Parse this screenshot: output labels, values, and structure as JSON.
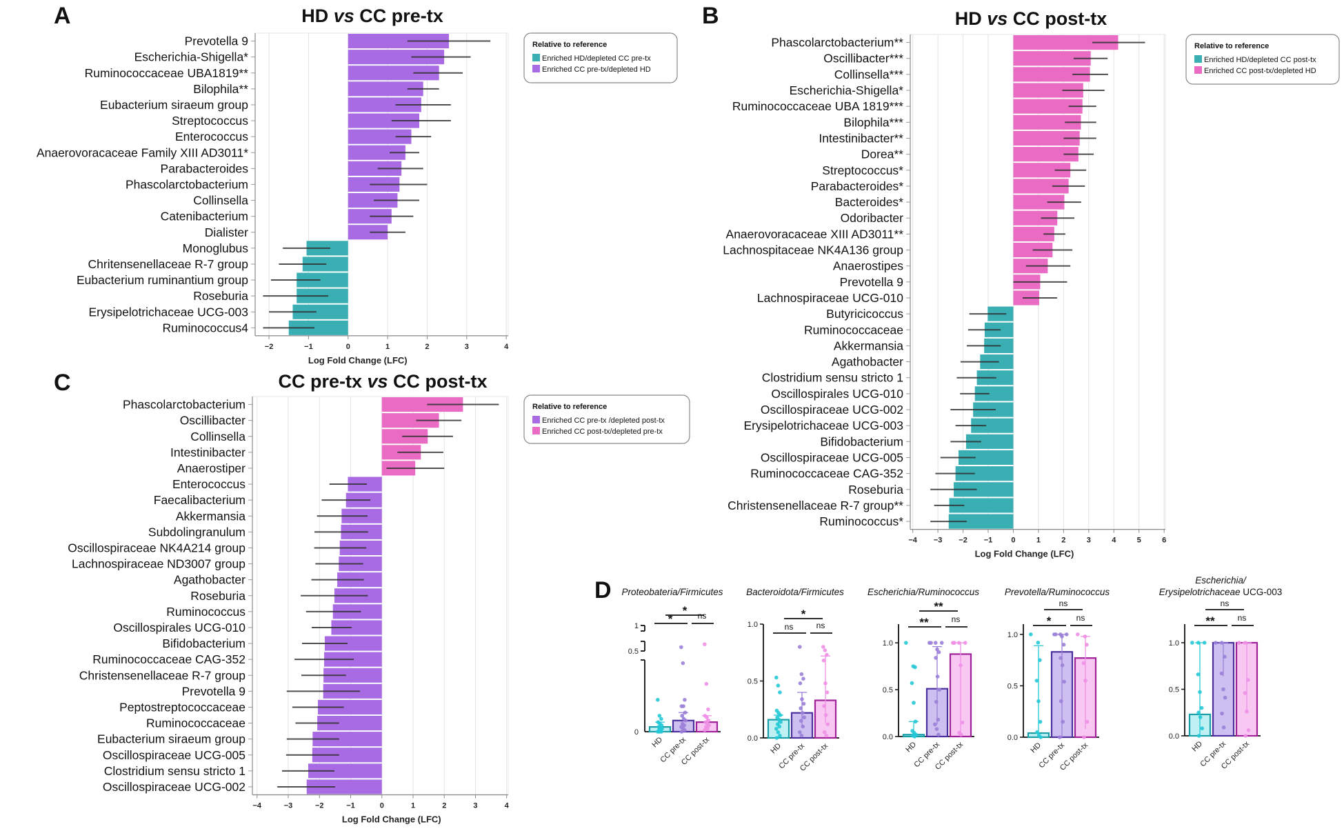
{
  "colors": {
    "teal": "#3AAFB3",
    "purple": "#A86BE3",
    "pink": "#EA6BC4",
    "errorbar": "#333333",
    "hd_dot": "#25C8D6",
    "pre_dot": "#9B80D8",
    "post_dot": "#EE8FE6"
  },
  "chart_data": [
    {
      "panel": "A",
      "type": "bar",
      "orientation": "horizontal",
      "title": "HD vs CC pre-tx",
      "title_parts": [
        "HD ",
        "vs",
        " CC pre-tx"
      ],
      "xlabel": "Log Fold Change (LFC)",
      "xlim": [
        -2.35,
        4.05
      ],
      "xticks": [
        -2,
        -1,
        0,
        1,
        2,
        3,
        4
      ],
      "grid": true,
      "legend": {
        "title": "Relative to reference",
        "placement": "right",
        "items": [
          {
            "label": "Enriched HD/depleted CC pre-tx",
            "color": "teal"
          },
          {
            "label": "Enriched CC pre-tx/depleted HD",
            "color": "purple"
          }
        ]
      },
      "categories": [
        "Prevotella 9",
        "Escherichia-Shigella*",
        "Ruminococcaceae UBA1819**",
        "Bilophila**",
        "Eubacterium siraeum group",
        "Streptococcus",
        "Enterococcus",
        "Anaerovoracaceae Family XIII AD3011*",
        "Parabacteroides",
        "Phascolarctobacterium",
        "Collinsella",
        "Catenibacterium",
        "Dialister",
        "Monoglubus",
        "Chritensenellaceae R-7 group",
        "Eubacterium ruminantium group",
        "Roseburia",
        "Erysipelotrichaceae UCG-003",
        "Ruminococcus4"
      ],
      "values": [
        2.55,
        2.43,
        2.3,
        1.9,
        1.85,
        1.8,
        1.6,
        1.45,
        1.35,
        1.3,
        1.25,
        1.1,
        1.0,
        -1.05,
        -1.15,
        -1.3,
        -1.3,
        -1.4,
        -1.5
      ],
      "ci_low": [
        1.5,
        1.6,
        1.65,
        1.5,
        1.2,
        1.1,
        1.2,
        1.05,
        0.75,
        0.55,
        0.65,
        0.55,
        0.55,
        -1.65,
        -1.75,
        -1.95,
        -2.15,
        -2.0,
        -2.15
      ],
      "ci_high": [
        3.6,
        3.1,
        2.9,
        2.3,
        2.6,
        2.6,
        2.1,
        1.8,
        1.9,
        2.0,
        1.8,
        1.65,
        1.45,
        -0.45,
        -0.55,
        -0.7,
        -0.5,
        -0.8,
        -0.85
      ],
      "colors": [
        "purple",
        "purple",
        "purple",
        "purple",
        "purple",
        "purple",
        "purple",
        "purple",
        "purple",
        "purple",
        "purple",
        "purple",
        "purple",
        "teal",
        "teal",
        "teal",
        "teal",
        "teal",
        "teal"
      ]
    },
    {
      "panel": "B",
      "type": "bar",
      "orientation": "horizontal",
      "title": "HD vs CC post-tx",
      "title_parts": [
        "HD ",
        "vs",
        " CC post-tx"
      ],
      "xlabel": "Log Fold Change (LFC)",
      "xlim": [
        -4.1,
        6.05
      ],
      "xticks": [
        -4,
        -3,
        -2,
        -1,
        0,
        1,
        2,
        3,
        4,
        5,
        6
      ],
      "grid": true,
      "legend": {
        "title": "Relative to reference",
        "placement": "right",
        "items": [
          {
            "label": "Enriched HD/depleted CC post-tx",
            "color": "teal"
          },
          {
            "label": "Enriched CC post-tx/depleted HD",
            "color": "pink"
          }
        ]
      },
      "categories": [
        "Phascolarctobacterium**",
        "Oscillibacter***",
        "Collinsella***",
        "Escherichia-Shigella*",
        "Ruminococcaceae UBA 1819***",
        "Bilophila***",
        "Intestinibacter**",
        "Dorea**",
        "Streptococcus*",
        "Parabacteroides*",
        "Bacteroides*",
        "Odoribacter",
        "Anaerovoracaceae XIII AD3011**",
        "Lachnospitaceae NK4A136 group",
        "Anaerostipes",
        "Prevotella 9",
        "Lachnospiraceae UCG-010",
        "Butyricicoccus",
        "Ruminococcaceae",
        "Akkermansia",
        "Agathobacter",
        "Clostridium sensu stricto 1",
        "Oscillospirales UCG-010",
        "Oscillospiraceae UCG-002",
        "Erysipelotrichaceae UCG-003",
        "Bifidobacterium",
        "Oscillospiraceae UCG-005",
        "Ruminococcaceae CAG-352",
        "Roseburia",
        "Christensenellaceae R-7 group**",
        "Ruminococcus*"
      ],
      "values": [
        4.17,
        3.08,
        3.05,
        2.78,
        2.75,
        2.69,
        2.64,
        2.59,
        2.27,
        2.2,
        2.03,
        1.75,
        1.63,
        1.56,
        1.37,
        1.07,
        1.03,
        -1.02,
        -1.14,
        -1.16,
        -1.32,
        -1.45,
        -1.53,
        -1.6,
        -1.68,
        -1.88,
        -2.18,
        -2.3,
        -2.37,
        -2.55,
        -2.57
      ],
      "ci_low": [
        3.14,
        2.4,
        2.35,
        1.95,
        2.2,
        2.05,
        2.0,
        2.0,
        1.65,
        1.55,
        1.35,
        1.1,
        1.2,
        0.77,
        0.5,
        0.0,
        0.37,
        -1.75,
        -1.8,
        -1.85,
        -2.1,
        -2.25,
        -2.12,
        -2.5,
        -2.3,
        -2.5,
        -2.9,
        -3.1,
        -3.3,
        -3.15,
        -3.3
      ],
      "ci_high": [
        5.24,
        3.75,
        3.77,
        3.63,
        3.3,
        3.3,
        3.3,
        3.2,
        2.9,
        2.85,
        2.7,
        2.43,
        2.07,
        2.35,
        2.27,
        2.14,
        1.74,
        -0.28,
        -0.5,
        -0.5,
        -0.57,
        -0.68,
        -0.95,
        -0.7,
        -1.08,
        -1.28,
        -1.5,
        -1.53,
        -1.45,
        -1.95,
        -1.85
      ],
      "colors": [
        "pink",
        "pink",
        "pink",
        "pink",
        "pink",
        "pink",
        "pink",
        "pink",
        "pink",
        "pink",
        "pink",
        "pink",
        "pink",
        "pink",
        "pink",
        "pink",
        "pink",
        "teal",
        "teal",
        "teal",
        "teal",
        "teal",
        "teal",
        "teal",
        "teal",
        "teal",
        "teal",
        "teal",
        "teal",
        "teal",
        "teal"
      ]
    },
    {
      "panel": "C",
      "type": "bar",
      "orientation": "horizontal",
      "title": "CC pre-tx vs CC post-tx",
      "title_parts": [
        "CC pre-tx ",
        "vs",
        " CC post-tx"
      ],
      "xlabel": "Log Fold Change (LFC)",
      "xlim": [
        -4.15,
        4.05
      ],
      "xticks": [
        -4,
        -3,
        -2,
        -1,
        0,
        1,
        2,
        3,
        4
      ],
      "grid": true,
      "legend": {
        "title": "Relative to reference",
        "placement": "right",
        "items": [
          {
            "label": "Enriched CC pre-tx /depleted post-tx",
            "color": "purple"
          },
          {
            "label": "Enriched CC post-tx/depleted pre-tx",
            "color": "pink"
          }
        ]
      },
      "categories": [
        "Phascolarctobacterium",
        "Oscillibacter",
        "Collinsella",
        "Intestinibacter",
        "Anaerostiper",
        "Enterococcus",
        "Faecalibacterium",
        "Akkermansia",
        "Subdolingranulum",
        "Oscillospiraceae NK4A214 group",
        "Lachnospiraceae ND3007 group",
        "Agathobacter",
        "Roseburia",
        "Ruminococcus",
        "Oscillospirales UCG-010",
        "Bifidobacterium",
        "Ruminococcaceae CAG-352",
        "Christensenellaceae R-7 group",
        "Prevotella 9",
        "Peptostreptococcaceae",
        "Ruminococcaceae",
        "Eubacterium siraeum group",
        "Oscillospiraceae UCG-005",
        "Clostridium sensu stricto 1",
        "Oscillospiraceae UCG-002"
      ],
      "values": [
        2.6,
        1.83,
        1.47,
        1.25,
        1.07,
        -1.09,
        -1.15,
        -1.29,
        -1.31,
        -1.35,
        -1.38,
        -1.43,
        -1.52,
        -1.57,
        -1.62,
        -1.83,
        -1.85,
        -1.87,
        -1.88,
        -2.05,
        -2.07,
        -2.22,
        -2.23,
        -2.36,
        -2.41
      ],
      "ci_low": [
        1.45,
        1.1,
        0.65,
        0.5,
        0.15,
        -1.68,
        -1.93,
        -2.08,
        -2.16,
        -2.17,
        -2.13,
        -2.26,
        -2.6,
        -2.43,
        -2.25,
        -2.56,
        -2.8,
        -2.58,
        -3.05,
        -2.87,
        -2.77,
        -3.05,
        -3.07,
        -3.2,
        -3.35
      ],
      "ci_high": [
        3.75,
        2.55,
        2.28,
        1.97,
        2.0,
        -0.48,
        -0.37,
        -0.46,
        -0.44,
        -0.5,
        -0.6,
        -0.58,
        -0.45,
        -0.67,
        -0.97,
        -1.1,
        -0.9,
        -1.15,
        -0.7,
        -1.22,
        -1.37,
        -1.37,
        -1.37,
        -1.52,
        -1.5
      ],
      "colors": [
        "pink",
        "pink",
        "pink",
        "pink",
        "pink",
        "purple",
        "purple",
        "purple",
        "purple",
        "purple",
        "purple",
        "purple",
        "purple",
        "purple",
        "purple",
        "purple",
        "purple",
        "purple",
        "purple",
        "purple",
        "purple",
        "purple",
        "purple",
        "purple",
        "purple"
      ]
    },
    {
      "panel": "D",
      "type": "bar",
      "subtype": "bar-with-points",
      "groups": [
        "HD",
        "CC pre-tx",
        "CC post-tx"
      ],
      "group_colors": [
        "hd_dot",
        "pre_dot",
        "post_dot"
      ],
      "subplots": [
        {
          "title": "Proteobateria/Firmicutes",
          "title_italic": [
            "Proteobateria/Firmicutes"
          ],
          "yticks": [
            "0",
            "0.5",
            "1"
          ],
          "ylim": [
            0,
            1
          ],
          "broken_axis": true,
          "means": [
            0.03,
            0.07,
            0.06
          ],
          "err_high": [
            0.06,
            0.12,
            0.1
          ],
          "points": [
            [
              0.2,
              0.1,
              0.08,
              0.06,
              0.05,
              0.04,
              0.03,
              0.02,
              0.02,
              0.01,
              0.01,
              0,
              0,
              0
            ],
            [
              0.54,
              0.43,
              0.2,
              0.16,
              0.16,
              0.12,
              0.1,
              0.08,
              0.07,
              0.05,
              0.04,
              0.03,
              0.02,
              0.01,
              0
            ],
            [
              0.57,
              0.3,
              0.14,
              0.1,
              0.09,
              0.07,
              0.06,
              0.05,
              0.04,
              0.03,
              0.02,
              0.01
            ]
          ],
          "comparisons": [
            {
              "pair": "HD–CC pre-tx",
              "label": "*"
            },
            {
              "pair": "CC pre-tx–CC post-tx",
              "label": "ns"
            },
            {
              "pair": "HD–CC post-tx",
              "label": "*"
            }
          ]
        },
        {
          "title": "Bacteroidota/Firmicutes",
          "yticks": [
            "0.0",
            "0.5",
            "1.0"
          ],
          "ylim": [
            0,
            1
          ],
          "means": [
            0.16,
            0.22,
            0.33
          ],
          "err_high": [
            0.2,
            0.4,
            0.72
          ],
          "err_low": [
            0.1,
            0.1,
            0.13
          ],
          "points": [
            [
              0.53,
              0.46,
              0.4,
              0.24,
              0.22,
              0.2,
              0.18,
              0.16,
              0.14,
              0.12,
              0.1,
              0.08,
              0.05,
              0.02,
              0
            ],
            [
              0.8,
              0.56,
              0.52,
              0.48,
              0.34,
              0.3,
              0.26,
              0.22,
              0.18,
              0.15,
              0.1,
              0.05,
              0.02
            ],
            [
              0.8,
              0.77,
              0.73,
              0.68,
              0.48,
              0.4,
              0.28,
              0.2,
              0.12,
              0.05,
              0.02
            ]
          ],
          "comparisons": [
            {
              "pair": "HD–CC pre-tx",
              "label": "ns"
            },
            {
              "pair": "CC pre-tx–CC post-tx",
              "label": "ns"
            },
            {
              "pair": "HD–CC post-tx",
              "label": "*"
            }
          ]
        },
        {
          "title": "Escherichia/Ruminococcus",
          "yticks": [
            "0.0",
            "0.5",
            "1.0"
          ],
          "ylim": [
            0,
            1.2
          ],
          "means": [
            0.02,
            0.51,
            0.88
          ],
          "err_high": [
            0.16,
            0.96,
            1.0
          ],
          "err_low": [
            0,
            0.13,
            0.03
          ],
          "points": [
            [
              1.0,
              0.75,
              0.74,
              0.57,
              0.36,
              0.16,
              0.06,
              0.04,
              0.02,
              0.01,
              0
            ],
            [
              1,
              1,
              1,
              1,
              0.93,
              0.9,
              0.84,
              0.64,
              0.5,
              0.37,
              0.18,
              0.13,
              0.08,
              0.02
            ],
            [
              1,
              1,
              1,
              1,
              0.76,
              0.15,
              0.04,
              0.02
            ]
          ],
          "comparisons": [
            {
              "pair": "HD–CC pre-tx",
              "label": "**"
            },
            {
              "pair": "CC pre-tx–CC post-tx",
              "label": "ns"
            },
            {
              "pair": "HD–CC post-tx",
              "label": "**"
            }
          ]
        },
        {
          "title": "Prevotella/Ruminococcus",
          "yticks": [
            "0.0",
            "0.5",
            "1.0"
          ],
          "ylim": [
            0,
            1.1
          ],
          "means": [
            0.04,
            0.83,
            0.77
          ],
          "err_high": [
            0.89,
            1.0,
            0.98
          ],
          "err_low": [
            0,
            0,
            0.08
          ],
          "points": [
            [
              1.0,
              0.92,
              0.75,
              0.55,
              0.35,
              0.15,
              0.05,
              0.02,
              0
            ],
            [
              1,
              1,
              1,
              1,
              0.98,
              0.9,
              0.77,
              0.7,
              0.54,
              0.35,
              0.15,
              0
            ],
            [
              1,
              0.98,
              0.9,
              0.72,
              0.55,
              0.15,
              0
            ]
          ],
          "comparisons": [
            {
              "pair": "HD–CC pre-tx",
              "label": "*"
            },
            {
              "pair": "CC pre-tx–CC post-tx",
              "label": "ns"
            },
            {
              "pair": "HD–CC post-tx",
              "label": "ns"
            }
          ]
        },
        {
          "title_line1": "Escherichia/",
          "title_line2_italic": "Erysipelotrichaceae",
          "title_line2_plain": " UCG-003",
          "yticks": [
            "0.0",
            "0.5",
            "1.0"
          ],
          "ylim": [
            0,
            1.2
          ],
          "means": [
            0.23,
            1.0,
            1.0
          ],
          "err_high": [
            1.0,
            1.0,
            1.0
          ],
          "err_low": [
            0,
            0.64,
            0.26
          ],
          "points": [
            [
              1,
              1,
              1,
              0.66,
              0.47,
              0.3,
              0.25,
              0.2,
              0.08,
              0
            ],
            [
              1,
              1,
              0.85,
              0.67,
              0.5,
              0.41,
              0.24,
              0.09
            ],
            [
              1,
              1,
              0.6,
              0.46,
              0.26,
              0.06,
              0
            ]
          ],
          "comparisons": [
            {
              "pair": "HD–CC pre-tx",
              "label": "**"
            },
            {
              "pair": "CC pre-tx–CC post-tx",
              "label": "ns"
            },
            {
              "pair": "HD–CC post-tx",
              "label": "ns"
            }
          ]
        }
      ]
    }
  ],
  "panel_letters": [
    "A",
    "B",
    "C",
    "D"
  ]
}
